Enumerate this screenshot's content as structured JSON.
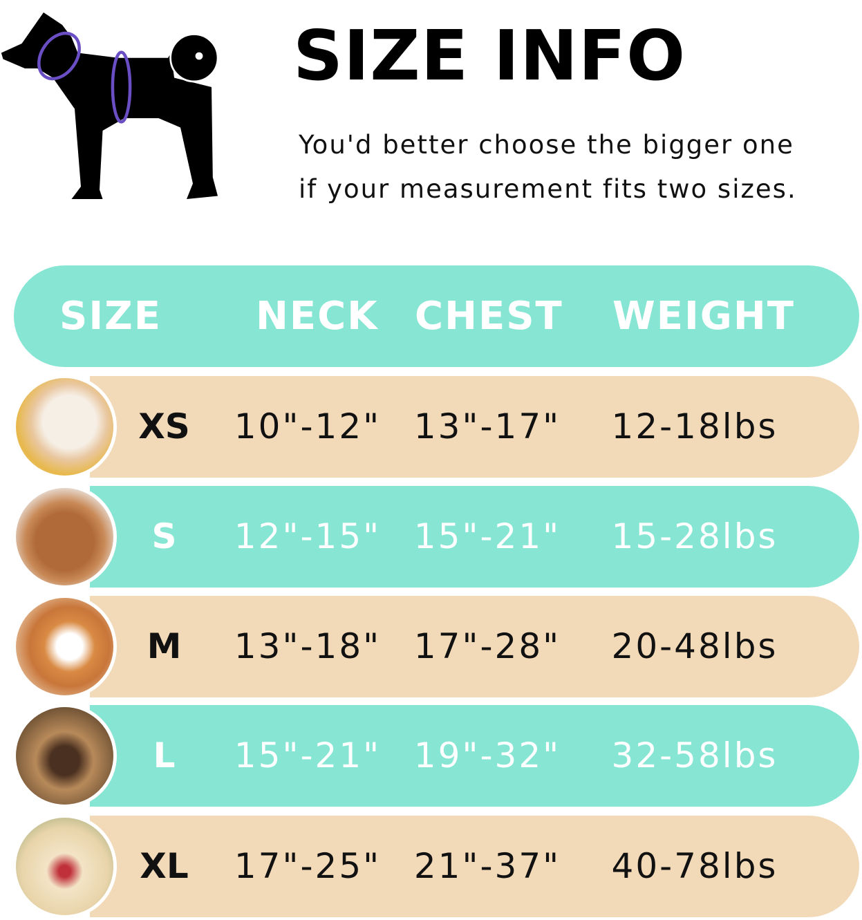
{
  "title": "SIZE INFO",
  "subtitle_lines": [
    "You'd better choose the bigger one",
    "if your measurement fits two sizes."
  ],
  "colors": {
    "teal": "#86e6d3",
    "tan": "#f2d9b8",
    "measure_ring": "#6a4fc4"
  },
  "table": {
    "headers": [
      "SIZE",
      "NECK",
      "CHEST",
      "WEIGHT"
    ],
    "rows": [
      {
        "size": "XS",
        "neck": "10\"-12\"",
        "chest": "13\"-17\"",
        "weight": "12-18lbs"
      },
      {
        "size": "S",
        "neck": "12\"-15\"",
        "chest": "15\"-21\"",
        "weight": "15-28lbs"
      },
      {
        "size": "M",
        "neck": "13\"-18\"",
        "chest": "17\"-28\"",
        "weight": "20-48lbs"
      },
      {
        "size": "L",
        "neck": "15\"-21\"",
        "chest": "19\"-32\"",
        "weight": "32-58lbs"
      },
      {
        "size": "XL",
        "neck": "17\"-25\"",
        "chest": "21\"-37\"",
        "weight": "40-78lbs"
      }
    ]
  }
}
